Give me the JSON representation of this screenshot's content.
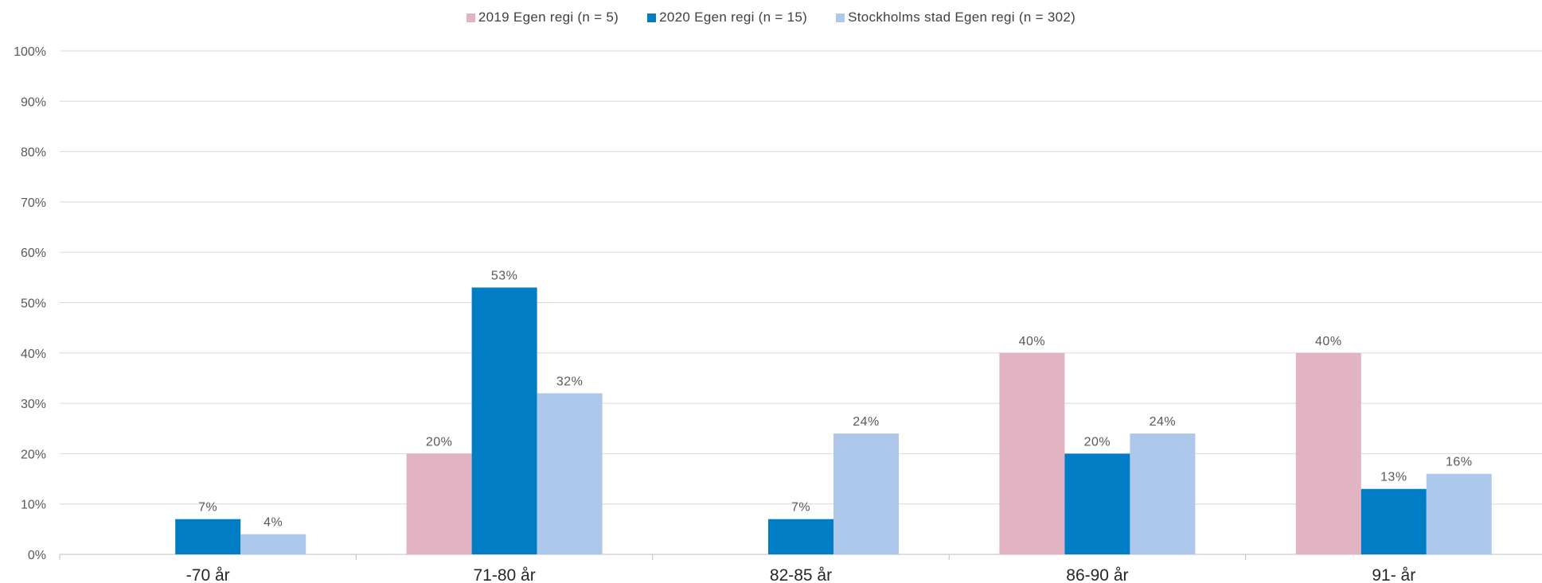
{
  "chart_data": {
    "type": "bar",
    "categories": [
      "-70 år",
      "71-80 år",
      "82-85 år",
      "86-90 år",
      "91- år"
    ],
    "series": [
      {
        "name": "2019  Egen regi (n = 5)",
        "color": "#e2b3c3",
        "values": [
          null,
          20,
          null,
          40,
          40
        ]
      },
      {
        "name": "2020  Egen regi (n = 15)",
        "color": "#007dc5",
        "values": [
          7,
          53,
          7,
          20,
          13
        ]
      },
      {
        "name": "Stockholms stad  Egen regi (n = 302)",
        "color": "#adc8ea",
        "values": [
          4,
          32,
          24,
          24,
          16
        ]
      }
    ],
    "ylim": [
      0,
      100
    ],
    "yticks": [
      0,
      10,
      20,
      30,
      40,
      50,
      60,
      70,
      80,
      90,
      100
    ],
    "ytick_suffix": "%",
    "data_label_suffix": "%",
    "legend_position": "top-center",
    "grid": true
  }
}
